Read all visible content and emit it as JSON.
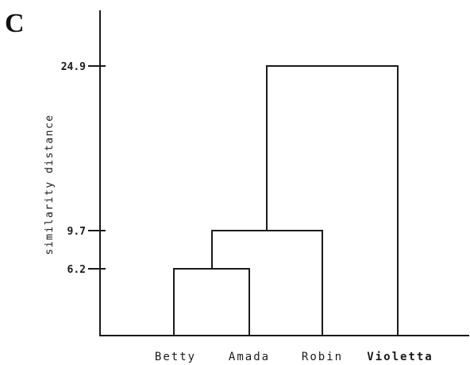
{
  "panel_label": "C",
  "axis": {
    "title": "similarity distance"
  },
  "chart_data": {
    "type": "dendrogram",
    "leaves": [
      "Betty",
      "Amada",
      "Robin",
      "Violetta"
    ],
    "merges": [
      {
        "left": "Betty",
        "right": "Amada",
        "height": 6.2
      },
      {
        "left": "Betty+Amada",
        "right": "Robin",
        "height": 9.7
      },
      {
        "left": "Betty+Amada+Robin",
        "right": "Violetta",
        "height": 24.9
      }
    ],
    "ticks": [
      {
        "value": 24.9,
        "label": "24.9"
      },
      {
        "value": 9.7,
        "label": "9.7"
      },
      {
        "value": 6.2,
        "label": "6.2"
      }
    ],
    "ylabel": "similarity distance"
  }
}
